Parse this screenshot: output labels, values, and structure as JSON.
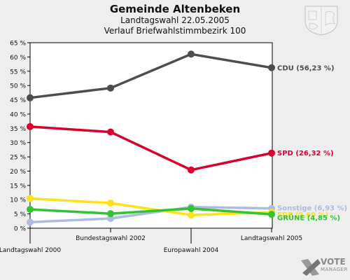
{
  "header": {
    "title": "Gemeinde Altenbeken",
    "subtitle": "Landtagswahl 22.05.2005",
    "subtitle2": "Verlauf Briefwahlstimmbezirk 100"
  },
  "branding": {
    "vote": "VOTE",
    "manager": "MANAGER"
  },
  "chart_data": {
    "type": "line",
    "categories": [
      "Landtagswahl 2000",
      "Bundestagswahl 2002",
      "Europawahl 2004",
      "Landtagswahl 2005"
    ],
    "ylim": [
      0,
      65
    ],
    "y_ticks": [
      0,
      5,
      10,
      15,
      20,
      25,
      30,
      35,
      40,
      45,
      50,
      55,
      60,
      65
    ],
    "y_tick_suffix": " %",
    "grid": false,
    "series": [
      {
        "name": "CDU",
        "color": "#4d4d4d",
        "values": [
          45.7,
          49.1,
          61.0,
          56.23
        ],
        "end_label": "CDU (56,23 %)"
      },
      {
        "name": "SPD",
        "color": "#d9002e",
        "values": [
          35.6,
          33.7,
          20.4,
          26.32
        ],
        "end_label": "SPD (26,32 %)"
      },
      {
        "name": "FDP",
        "color": "#ffe11a",
        "values": [
          10.4,
          8.8,
          4.6,
          5.6
        ],
        "end_label": "FDP (5,60 %)"
      },
      {
        "name": "Sonstige",
        "color": "#aabce0",
        "values": [
          2.1,
          3.4,
          7.4,
          6.93
        ],
        "end_label": "Sonstige (6,93 %)"
      },
      {
        "name": "GRÜNE",
        "color": "#30c530",
        "values": [
          6.6,
          5.1,
          6.9,
          4.85
        ],
        "end_label": "GRÜNE (4,85 %)"
      }
    ]
  }
}
